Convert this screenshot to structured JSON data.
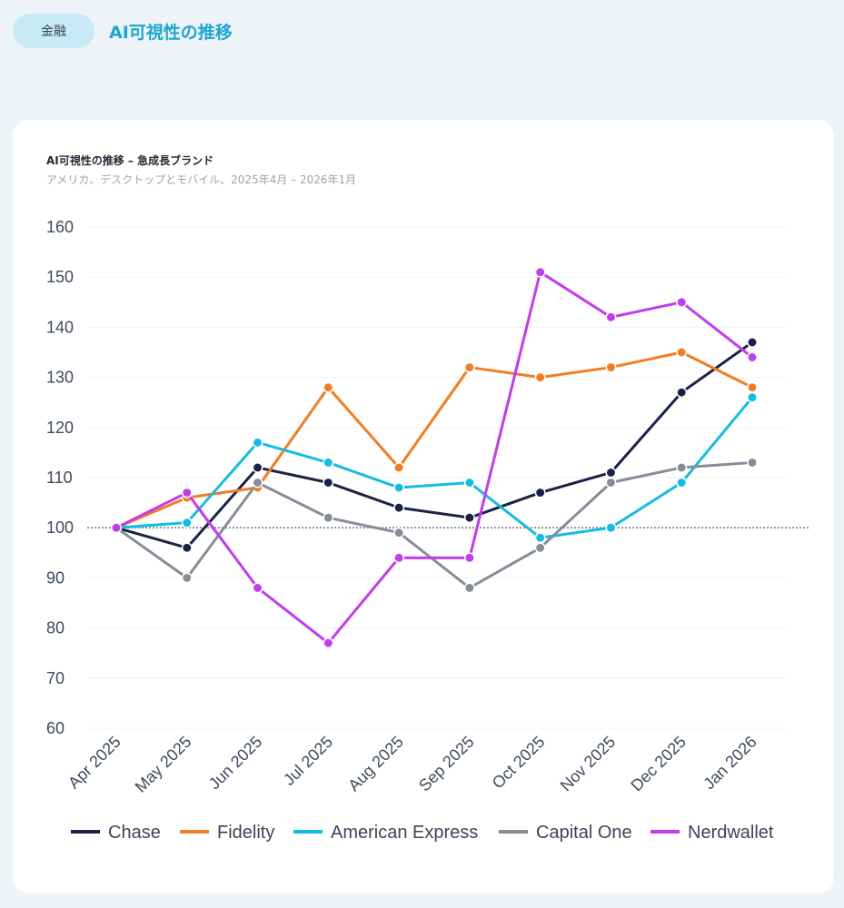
{
  "header": {
    "category_pill": "金融",
    "title": "AI可視性の推移"
  },
  "chart_data": {
    "type": "line",
    "title": "AI可視性の推移 – 急成長ブランド",
    "subtitle": "アメリカ、デスクトップとモバイル、2025年4月 – 2026年1月",
    "xlabel": "",
    "ylabel": "",
    "x": [
      "Apr 2025",
      "May 2025",
      "Jun 2025",
      "Jul 2025",
      "Aug 2025",
      "Sep 2025",
      "Oct 2025",
      "Nov 2025",
      "Dec 2025",
      "Jan 2026"
    ],
    "ylim": [
      60,
      160
    ],
    "yticks": [
      160,
      150,
      140,
      130,
      120,
      110,
      100,
      90,
      80,
      70,
      60
    ],
    "reference_line": 100,
    "grid": true,
    "legend_position": "bottom",
    "series": [
      {
        "name": "Chase",
        "color": "#1a2249",
        "values": [
          100,
          96,
          112,
          109,
          104,
          102,
          107,
          111,
          127,
          137
        ]
      },
      {
        "name": "Fidelity",
        "color": "#f47c20",
        "values": [
          100,
          106,
          108,
          128,
          112,
          132,
          130,
          132,
          135,
          128
        ]
      },
      {
        "name": "American Express",
        "color": "#12bde3",
        "values": [
          100,
          101,
          117,
          113,
          108,
          109,
          98,
          100,
          109,
          126
        ]
      },
      {
        "name": "Capital One",
        "color": "#858d98",
        "values": [
          100,
          90,
          109,
          102,
          99,
          88,
          96,
          109,
          112,
          113
        ]
      },
      {
        "name": "Nerdwallet",
        "color": "#c23bf0",
        "values": [
          100,
          107,
          88,
          77,
          94,
          94,
          151,
          142,
          145,
          134
        ]
      }
    ]
  }
}
